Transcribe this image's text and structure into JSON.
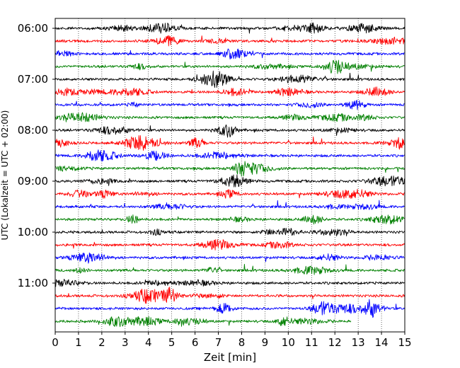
{
  "chart_data": {
    "type": "line",
    "title": "",
    "xlabel": "Zeit  [min]",
    "ylabel": "UTC (Lokalzeit = UTC + 02:00)",
    "xlim": [
      0,
      15
    ],
    "x_ticks": [
      "0",
      "1",
      "2",
      "3",
      "4",
      "5",
      "6",
      "7",
      "8",
      "9",
      "10",
      "11",
      "12",
      "13",
      "14",
      "15"
    ],
    "y_tick_labels": [
      "06:00",
      "07:00",
      "08:00",
      "09:00",
      "10:00",
      "11:00"
    ],
    "grid": "vertical dotted",
    "series_colors": [
      "#000000",
      "#ff0000",
      "#0000ff",
      "#008000"
    ],
    "traces": [
      {
        "start": "06:00",
        "end_minute": 15
      },
      {
        "start": "06:15",
        "end_minute": 15
      },
      {
        "start": "06:30",
        "end_minute": 15
      },
      {
        "start": "06:45",
        "end_minute": 15
      },
      {
        "start": "07:00",
        "end_minute": 15
      },
      {
        "start": "07:15",
        "end_minute": 15
      },
      {
        "start": "07:30",
        "end_minute": 15
      },
      {
        "start": "07:45",
        "end_minute": 15
      },
      {
        "start": "08:00",
        "end_minute": 15
      },
      {
        "start": "08:15",
        "end_minute": 15
      },
      {
        "start": "08:30",
        "end_minute": 15
      },
      {
        "start": "08:45",
        "end_minute": 15
      },
      {
        "start": "09:00",
        "end_minute": 15
      },
      {
        "start": "09:15",
        "end_minute": 15
      },
      {
        "start": "09:30",
        "end_minute": 15
      },
      {
        "start": "09:45",
        "end_minute": 15
      },
      {
        "start": "10:00",
        "end_minute": 15
      },
      {
        "start": "10:15",
        "end_minute": 15
      },
      {
        "start": "10:30",
        "end_minute": 15
      },
      {
        "start": "10:45",
        "end_minute": 15
      },
      {
        "start": "11:00",
        "end_minute": 15
      },
      {
        "start": "11:15",
        "end_minute": 15
      },
      {
        "start": "11:30",
        "end_minute": 15
      },
      {
        "start": "11:45",
        "end_minute": 12.7
      }
    ]
  }
}
